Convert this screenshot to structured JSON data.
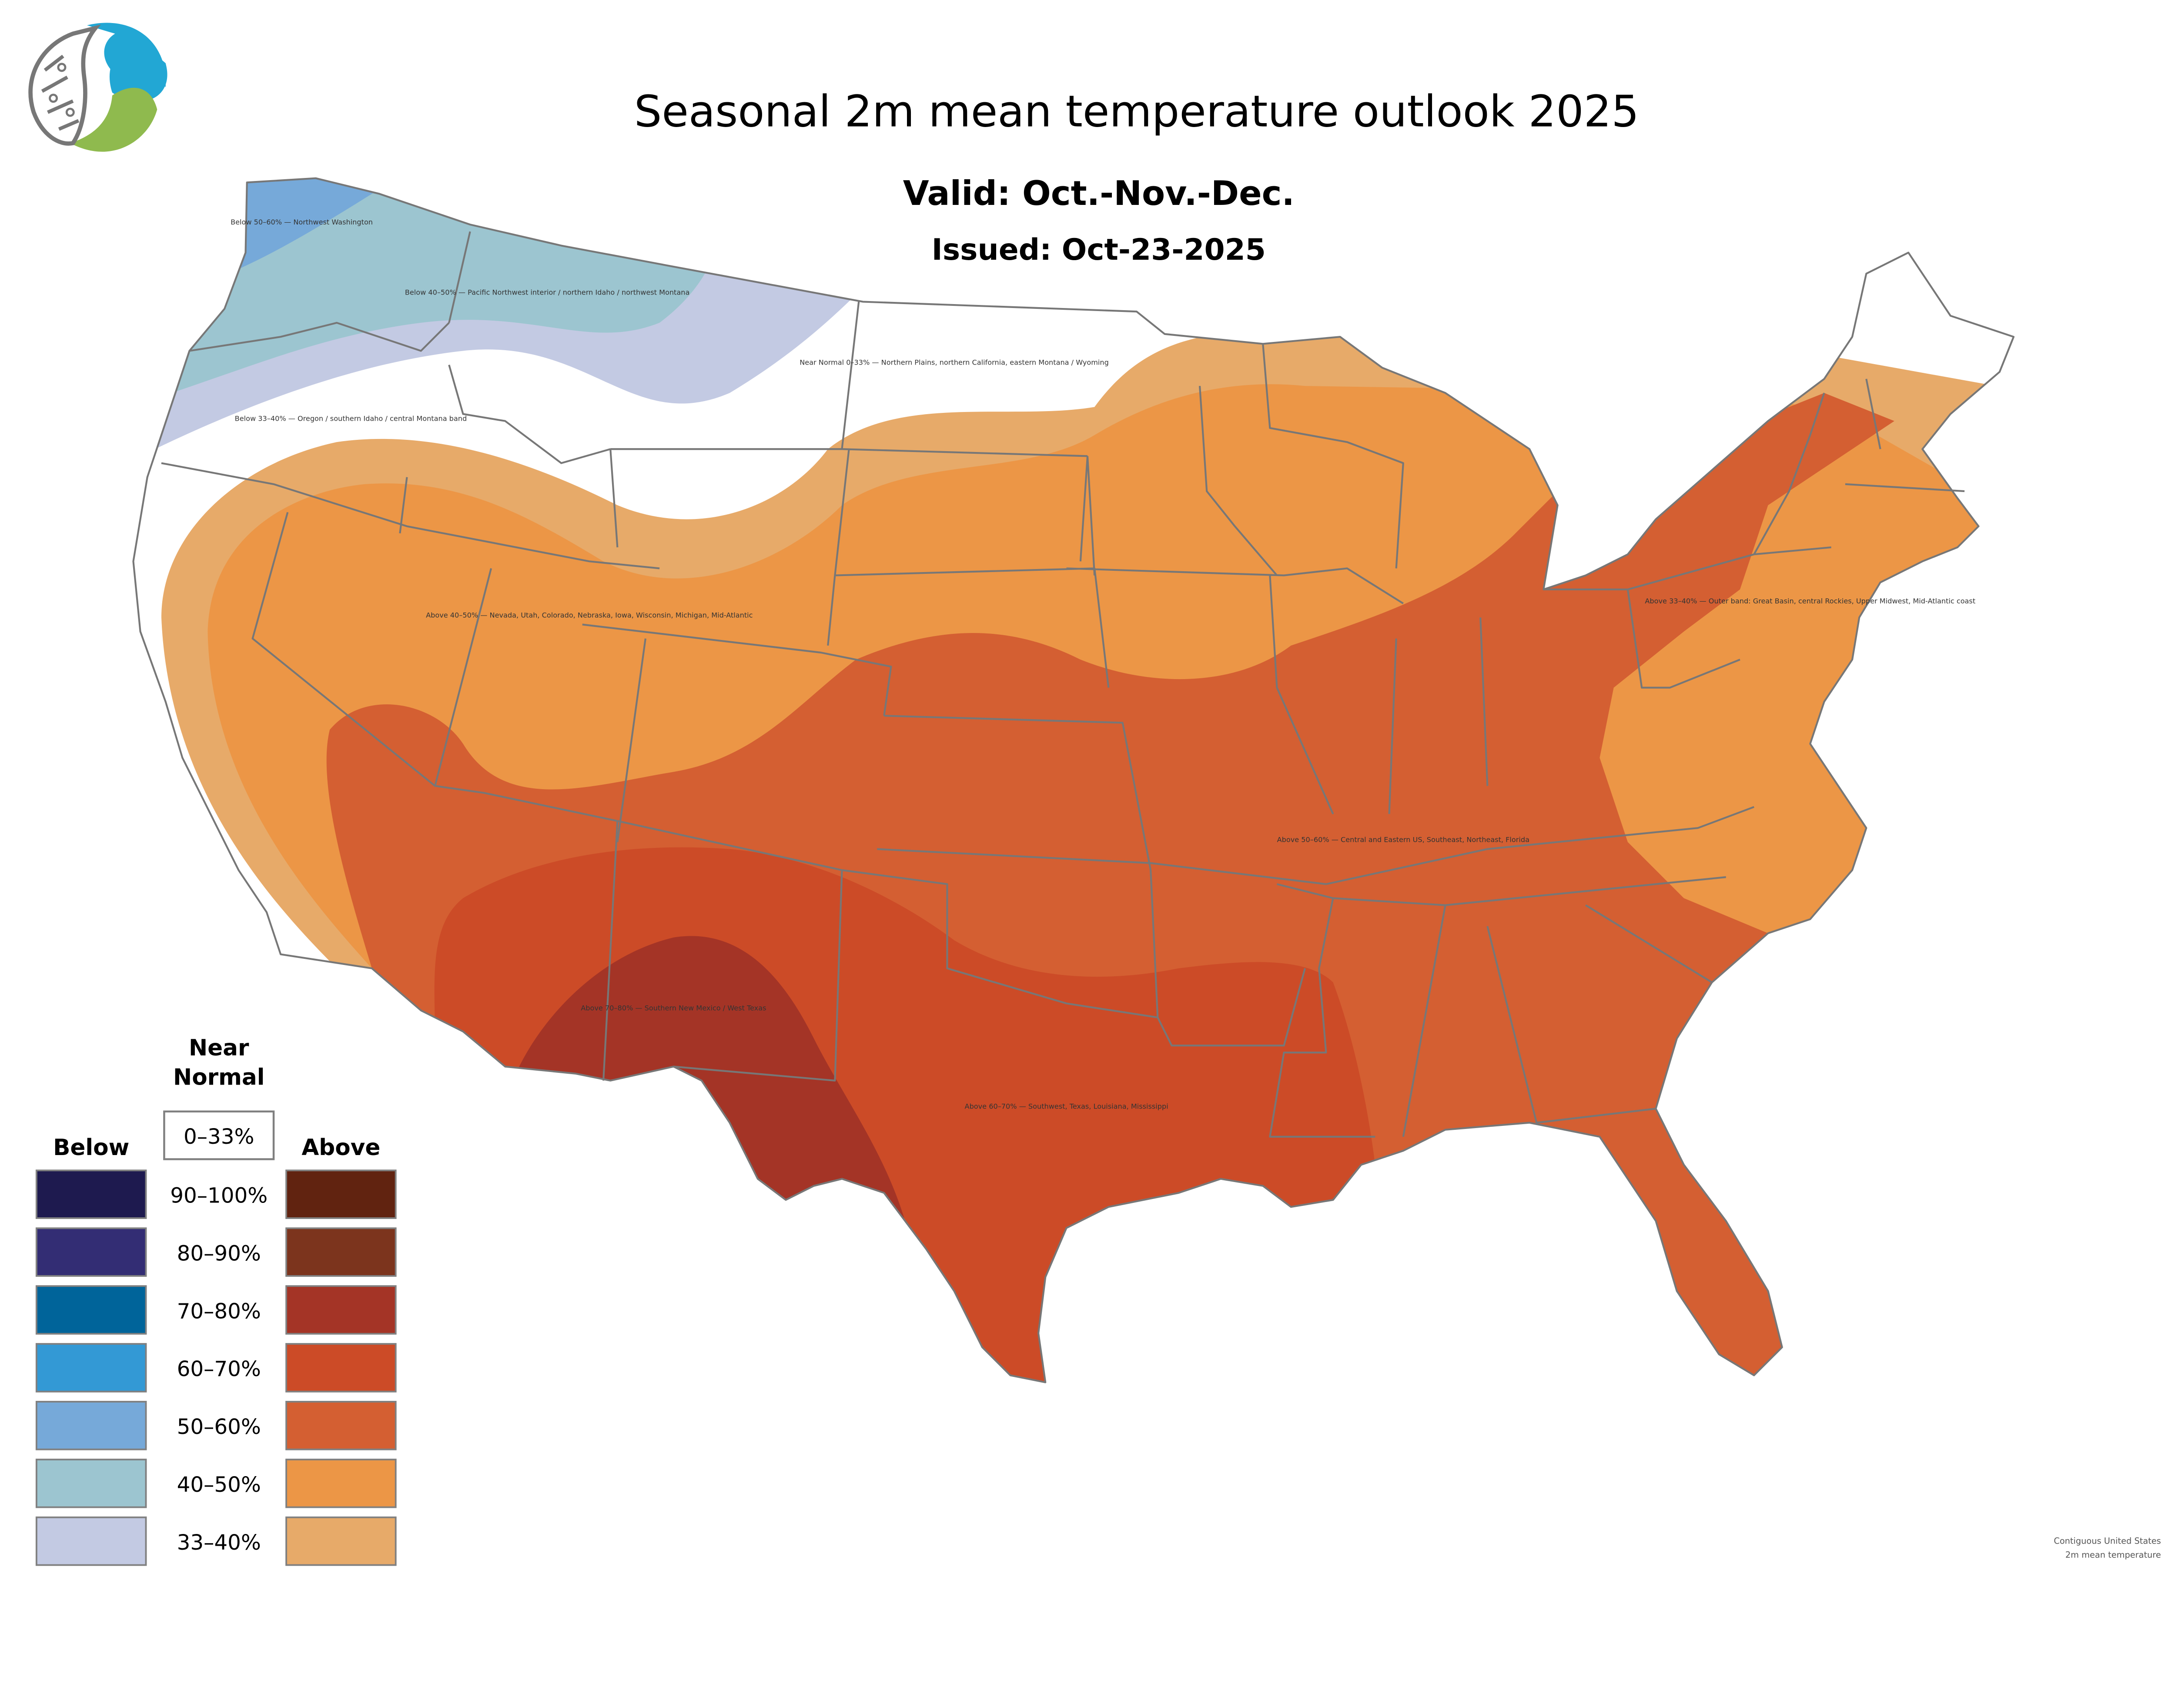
{
  "header": {
    "title": "Seasonal 2m mean temperature outlook 2025",
    "valid": "Valid: Oct.-Nov.-Dec.",
    "issued": "Issued: Oct-23-2025",
    "logo_icon": "water-leaf-circuit-logo-icon"
  },
  "map": {
    "region": "Contiguous United States",
    "variable": "2m mean temperature",
    "zones": [
      {
        "category": "Below",
        "probability": "40–50%",
        "area": "Pacific Northwest interior / northern Idaho / northwest Montana"
      },
      {
        "category": "Below",
        "probability": "50–60%",
        "area": "Northwest Washington"
      },
      {
        "category": "Below",
        "probability": "33–40%",
        "area": "Oregon / southern Idaho / central Montana band"
      },
      {
        "category": "Near Normal",
        "probability": "0–33%",
        "area": "Northern Plains, northern California, eastern Montana / Wyoming"
      },
      {
        "category": "Above",
        "probability": "33–40%",
        "area": "Outer band: Great Basin, central Rockies, Upper Midwest, Mid-Atlantic coast"
      },
      {
        "category": "Above",
        "probability": "40–50%",
        "area": "Nevada, Utah, Colorado, Nebraska, Iowa, Wisconsin, Michigan, Mid-Atlantic"
      },
      {
        "category": "Above",
        "probability": "50–60%",
        "area": "Central and Eastern US, Southeast, Northeast, Florida"
      },
      {
        "category": "Above",
        "probability": "60–70%",
        "area": "Southwest, Texas, Louisiana, Mississippi"
      },
      {
        "category": "Above",
        "probability": "70–80%",
        "area": "Southern New Mexico / West Texas"
      }
    ]
  },
  "legend": {
    "near_normal_heading": "Near Normal",
    "near_normal_label": "0–33%",
    "near_normal_color": "#ffffff",
    "below_heading": "Below",
    "above_heading": "Above",
    "rows": [
      {
        "label": "90–100%",
        "below_color": "#1e1a4f",
        "above_color": "#612310"
      },
      {
        "label": "80–90%",
        "below_color": "#332d74",
        "above_color": "#7c341d"
      },
      {
        "label": "70–80%",
        "below_color": "#00649a",
        "above_color": "#a43426"
      },
      {
        "label": "60–70%",
        "below_color": "#3399d5",
        "above_color": "#cc4b27"
      },
      {
        "label": "50–60%",
        "below_color": "#76a9d9",
        "above_color": "#d45f32"
      },
      {
        "label": "40–50%",
        "below_color": "#9cc5d0",
        "above_color": "#ec9646"
      },
      {
        "label": "33–40%",
        "below_color": "#c3cae3",
        "above_color": "#e7aa69"
      }
    ]
  }
}
